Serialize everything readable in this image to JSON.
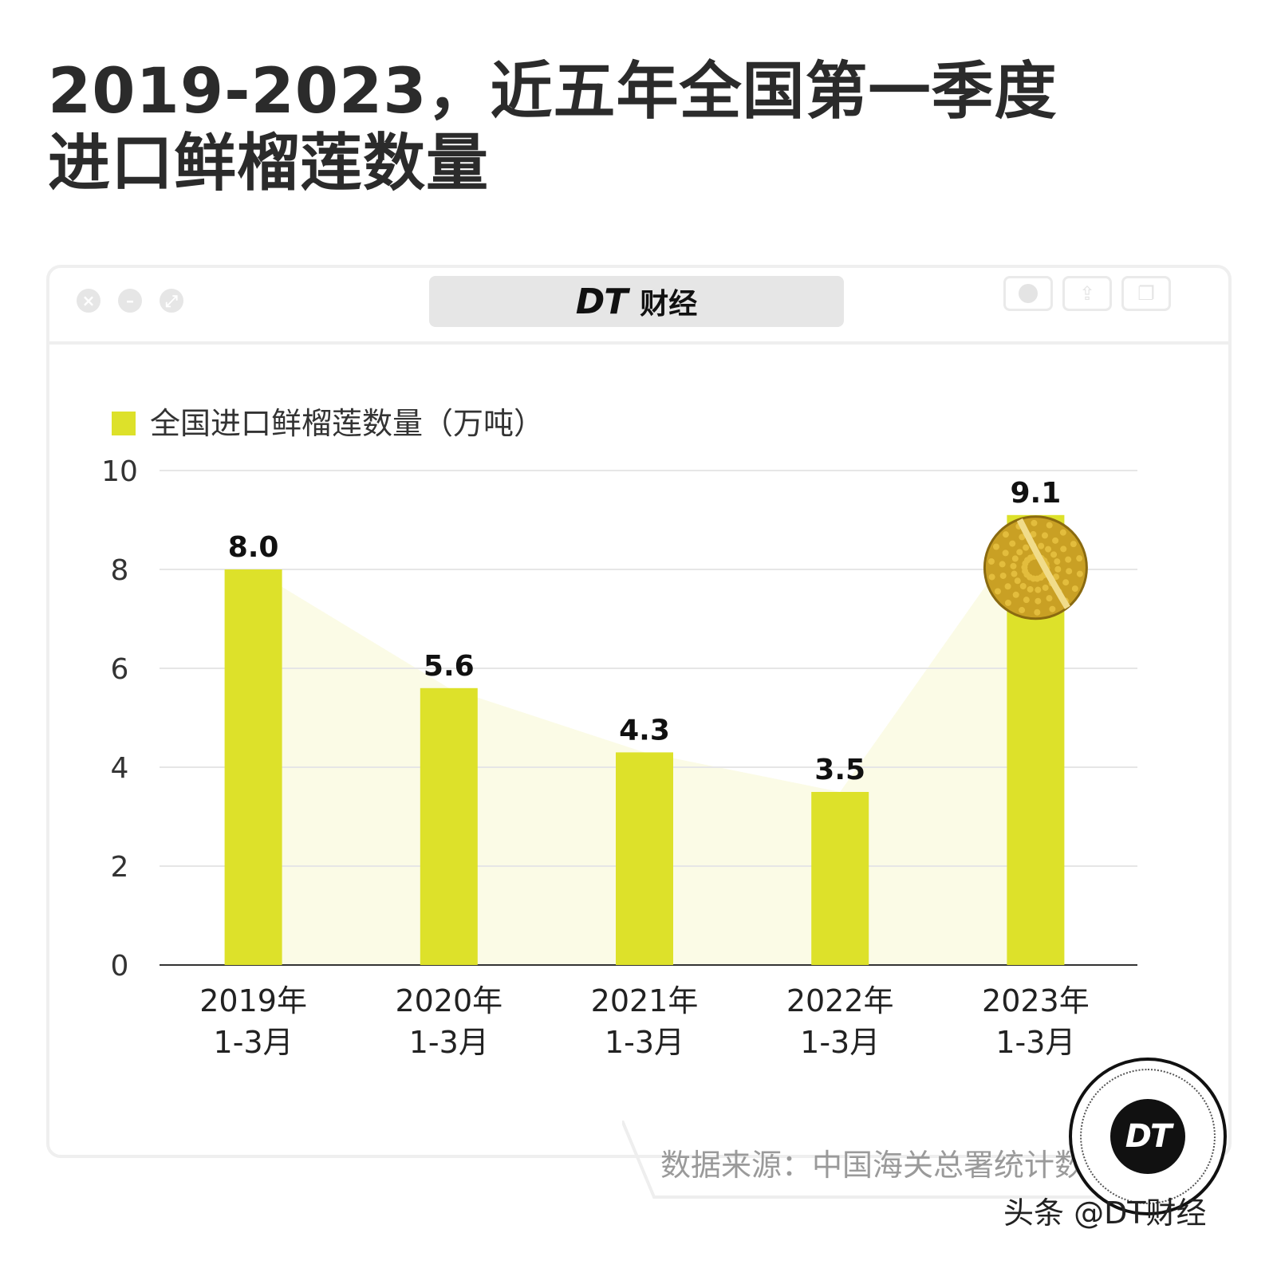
{
  "title": {
    "line1": "2019-2023，近五年全国第一季度",
    "line2": "进口鲜榴莲数量"
  },
  "window": {
    "brand_logo": "DT",
    "brand_name": "财经",
    "title_buttons": [
      "close-icon",
      "minimize-icon",
      "maximize-icon"
    ],
    "toolbar_icons": [
      "record-icon",
      "share-icon",
      "copy-icon"
    ]
  },
  "chart_data": {
    "type": "bar",
    "legend": "全国进口鲜榴莲数量（万吨）",
    "categories": [
      [
        "2019年",
        "1-3月"
      ],
      [
        "2020年",
        "1-3月"
      ],
      [
        "2021年",
        "1-3月"
      ],
      [
        "2022年",
        "1-3月"
      ],
      [
        "2023年",
        "1-3月"
      ]
    ],
    "values": [
      8.0,
      5.6,
      4.3,
      3.5,
      9.1
    ],
    "value_labels": [
      "8.0",
      "5.6",
      "4.3",
      "3.5",
      "9.1"
    ],
    "yticks": [
      "0",
      "2",
      "4",
      "6",
      "8",
      "10"
    ],
    "ylim": [
      0,
      10
    ],
    "grid": true,
    "colors": {
      "bar": "#dde12a",
      "area": "#fbfbe6",
      "grid": "#e6e6e6",
      "axis": "#333333"
    },
    "annotation": "durian-illustration"
  },
  "footer": {
    "source": "数据来源：中国海关总署统计数据",
    "badge": "DT",
    "credit": "头条 @DT财经"
  }
}
